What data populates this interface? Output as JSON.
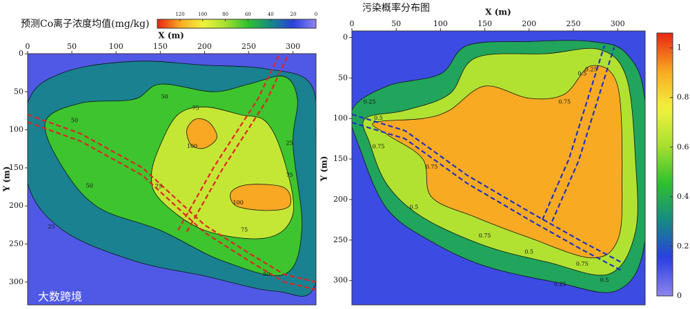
{
  "chart_data": [
    {
      "type": "contour",
      "title": "预测Co离子浓度均值(mg/kg)",
      "x_label": "X (m)",
      "y_label": "Y (m)",
      "xlim": [
        0,
        326
      ],
      "xticks": [
        0,
        50,
        100,
        150,
        200,
        250,
        300
      ],
      "ylim": [
        0,
        330
      ],
      "yticks": [
        0,
        50,
        100,
        150,
        200,
        250,
        300
      ],
      "colorbar": {
        "lim": [
          140,
          0
        ],
        "ticks": [
          120,
          100,
          80,
          60,
          40,
          20,
          0
        ],
        "colors": [
          "#8f86ee",
          "#2a3ee0",
          "#168a84",
          "#2ec02e",
          "#a8e030",
          "#f2f23c",
          "#f8a822",
          "#e82412"
        ]
      },
      "contour_levels": [
        25,
        50,
        75,
        100
      ],
      "line_color": "#e02424"
    },
    {
      "type": "contour",
      "title": "污染概率分布图",
      "x_label": "X (m)",
      "y_label": "Y (m)",
      "xlim": [
        0,
        331
      ],
      "xticks": [
        0,
        50,
        100,
        150,
        200,
        250,
        300
      ],
      "ylim": [
        -8,
        330
      ],
      "yticks": [
        0,
        50,
        100,
        150,
        200,
        250,
        300
      ],
      "colorbar": {
        "lim": [
          0,
          1.06
        ],
        "ticks": [
          0,
          0.2,
          0.4,
          0.6,
          0.8,
          1
        ],
        "colors": [
          "#8f86ee",
          "#2a3ee0",
          "#168a84",
          "#2ec02e",
          "#a8e030",
          "#f2f23c",
          "#f8a822",
          "#e82412"
        ]
      },
      "contour_levels": [
        0.25,
        0.5,
        0.75
      ],
      "line_color": "#2030c0"
    }
  ],
  "watermark": "大数跨境"
}
